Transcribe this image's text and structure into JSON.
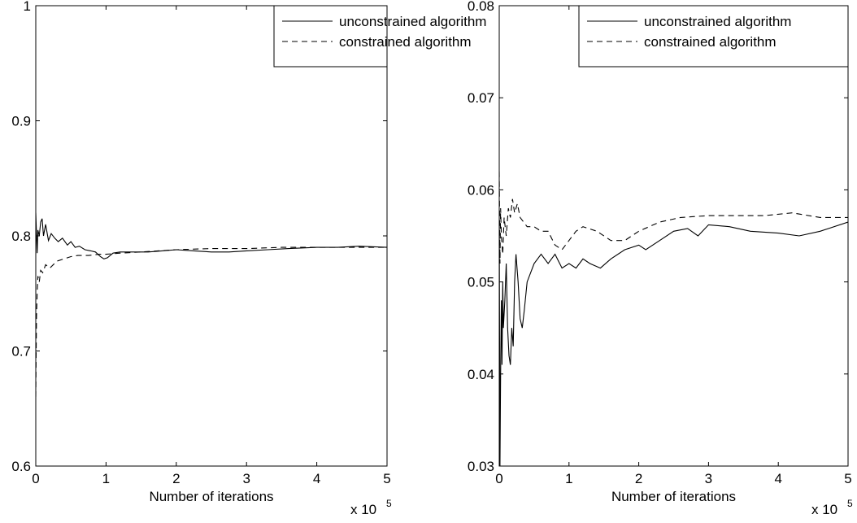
{
  "chart_data": [
    {
      "type": "line",
      "title": "",
      "xlabel": "Number of iterations",
      "x_multiplier_label": "x 10",
      "x_multiplier_exp": "5",
      "xlim": [
        0,
        5
      ],
      "ylim": [
        0.6,
        1.0
      ],
      "xticks": [
        "0",
        "1",
        "2",
        "3",
        "4",
        "5"
      ],
      "yticks": [
        "0.6",
        "0.7",
        "0.8",
        "0.9",
        "1"
      ],
      "legend_position": "top-right",
      "series": [
        {
          "name": "unconstrained algorithm",
          "style": "solid",
          "x": [
            0,
            0.02,
            0.03,
            0.05,
            0.07,
            0.09,
            0.11,
            0.14,
            0.18,
            0.22,
            0.27,
            0.32,
            0.38,
            0.45,
            0.5,
            0.56,
            0.62,
            0.7,
            0.78,
            0.85,
            0.92,
            0.97,
            1.02,
            1.1,
            1.2,
            1.3,
            1.45,
            1.6,
            1.8,
            2.0,
            2.25,
            2.5,
            2.75,
            3.0,
            3.3,
            3.6,
            4.0,
            4.3,
            4.6,
            5.0
          ],
          "y": [
            0.82,
            0.785,
            0.805,
            0.8,
            0.812,
            0.815,
            0.8,
            0.81,
            0.796,
            0.802,
            0.798,
            0.795,
            0.798,
            0.792,
            0.795,
            0.79,
            0.791,
            0.788,
            0.787,
            0.786,
            0.782,
            0.78,
            0.781,
            0.785,
            0.786,
            0.786,
            0.786,
            0.786,
            0.787,
            0.788,
            0.787,
            0.786,
            0.786,
            0.787,
            0.788,
            0.789,
            0.79,
            0.79,
            0.791,
            0.79
          ]
        },
        {
          "name": "constrained algorithm",
          "style": "dashed",
          "x": [
            0,
            0.01,
            0.02,
            0.03,
            0.05,
            0.07,
            0.1,
            0.14,
            0.2,
            0.3,
            0.4,
            0.5,
            0.6,
            0.75,
            0.9,
            1.0,
            1.2,
            1.5,
            2.0,
            2.5,
            3.0,
            3.5,
            4.0,
            4.5,
            5.0
          ],
          "y": [
            0.66,
            0.73,
            0.75,
            0.765,
            0.76,
            0.77,
            0.768,
            0.775,
            0.772,
            0.778,
            0.78,
            0.782,
            0.783,
            0.783,
            0.784,
            0.784,
            0.785,
            0.786,
            0.788,
            0.789,
            0.789,
            0.79,
            0.79,
            0.79,
            0.79
          ]
        }
      ]
    },
    {
      "type": "line",
      "title": "",
      "xlabel": "Number of iterations",
      "x_multiplier_label": "x 10",
      "x_multiplier_exp": "5",
      "xlim": [
        0,
        5
      ],
      "ylim": [
        0.03,
        0.08
      ],
      "xticks": [
        "0",
        "1",
        "2",
        "3",
        "4",
        "5"
      ],
      "yticks": [
        "0.03",
        "0.04",
        "0.05",
        "0.06",
        "0.07",
        "0.08"
      ],
      "legend_position": "top-right",
      "series": [
        {
          "name": "unconstrained algorithm",
          "style": "solid",
          "x": [
            0,
            0.01,
            0.02,
            0.03,
            0.04,
            0.05,
            0.06,
            0.08,
            0.1,
            0.12,
            0.14,
            0.16,
            0.18,
            0.2,
            0.22,
            0.24,
            0.27,
            0.3,
            0.33,
            0.36,
            0.4,
            0.45,
            0.5,
            0.6,
            0.7,
            0.8,
            0.9,
            1.0,
            1.1,
            1.2,
            1.3,
            1.45,
            1.6,
            1.8,
            2.0,
            2.1,
            2.3,
            2.5,
            2.7,
            2.85,
            3.0,
            3.3,
            3.6,
            4.0,
            4.3,
            4.6,
            5.0
          ],
          "y": [
            0.057,
            0.03,
            0.04,
            0.048,
            0.041,
            0.05,
            0.045,
            0.048,
            0.052,
            0.045,
            0.042,
            0.041,
            0.045,
            0.043,
            0.05,
            0.053,
            0.05,
            0.046,
            0.045,
            0.047,
            0.05,
            0.051,
            0.052,
            0.053,
            0.052,
            0.053,
            0.0515,
            0.052,
            0.0515,
            0.0525,
            0.052,
            0.0515,
            0.0525,
            0.0535,
            0.054,
            0.0535,
            0.0545,
            0.0555,
            0.0558,
            0.055,
            0.0562,
            0.056,
            0.0555,
            0.0553,
            0.055,
            0.0555,
            0.0565
          ]
        },
        {
          "name": "constrained algorithm",
          "style": "dashed",
          "x": [
            0,
            0.01,
            0.02,
            0.03,
            0.05,
            0.07,
            0.1,
            0.13,
            0.16,
            0.19,
            0.22,
            0.26,
            0.3,
            0.35,
            0.4,
            0.5,
            0.6,
            0.7,
            0.8,
            0.9,
            1.0,
            1.1,
            1.2,
            1.4,
            1.6,
            1.8,
            2.0,
            2.3,
            2.6,
            3.0,
            3.4,
            3.8,
            4.2,
            4.6,
            5.0
          ],
          "y": [
            0.062,
            0.052,
            0.058,
            0.055,
            0.053,
            0.057,
            0.055,
            0.058,
            0.057,
            0.059,
            0.0575,
            0.0585,
            0.057,
            0.0565,
            0.056,
            0.056,
            0.0555,
            0.0555,
            0.054,
            0.0535,
            0.0545,
            0.0555,
            0.056,
            0.0555,
            0.0545,
            0.0545,
            0.0555,
            0.0565,
            0.057,
            0.0572,
            0.0572,
            0.0572,
            0.0575,
            0.057,
            0.057
          ]
        }
      ]
    }
  ]
}
